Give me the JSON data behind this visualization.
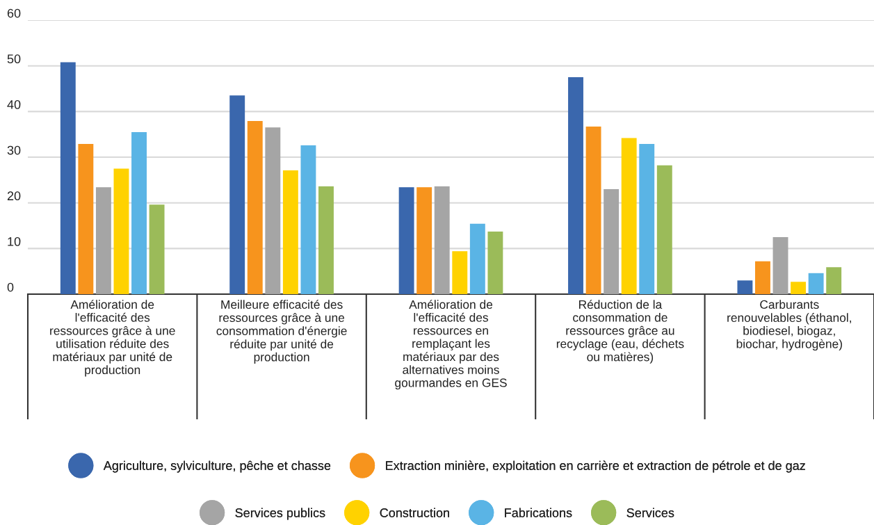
{
  "chart_data": {
    "type": "bar",
    "categories": [
      "Amélioration de\nl'efficacité des\nressources grâce à une\nutilisation réduite des\nmatériaux par unité de\nproduction",
      "Meilleure efficacité des\nressources grâce à une\nconsommation d'énergie\nréduite par unité de\nproduction",
      "Amélioration de\nl'efficacité des\nressources en\nremplaçant les\nmatériaux par des\nalternatives moins\ngourmandes en GES",
      "Réduction de la\nconsommation de\nressources grâce au\nrecyclage (eau, déchets\nou matières)",
      "Carburants\nrenouvelables (éthanol,\nbiodiesel, biogaz,\nbiochar, hydrogène)"
    ],
    "series": [
      {
        "name": "Agriculture, sylviculture, pêche et chasse",
        "color": "#3a67ad",
        "values": [
          50.8,
          43.5,
          23.4,
          47.5,
          3.0
        ]
      },
      {
        "name": "Extraction minière, exploitation en carrière et extraction de pétrole et de gaz",
        "color": "#f7941d",
        "values": [
          32.9,
          37.9,
          23.4,
          36.7,
          7.2
        ]
      },
      {
        "name": "Services publics",
        "color": "#a5a5a5",
        "values": [
          23.4,
          36.5,
          23.6,
          23.0,
          12.5
        ]
      },
      {
        "name": "Construction",
        "color": "#ffd200",
        "values": [
          27.5,
          27.1,
          9.4,
          34.2,
          2.7
        ]
      },
      {
        "name": "Fabrications",
        "color": "#5ab4e5",
        "values": [
          35.5,
          32.6,
          15.4,
          32.9,
          4.6
        ]
      },
      {
        "name": "Services",
        "color": "#9bbb59",
        "values": [
          19.6,
          23.6,
          13.7,
          28.2,
          5.9
        ]
      }
    ],
    "ylim": [
      0,
      60
    ],
    "yticks": [
      0,
      10,
      20,
      30,
      40,
      50,
      60
    ],
    "grid": "y",
    "legend": "bottom"
  }
}
